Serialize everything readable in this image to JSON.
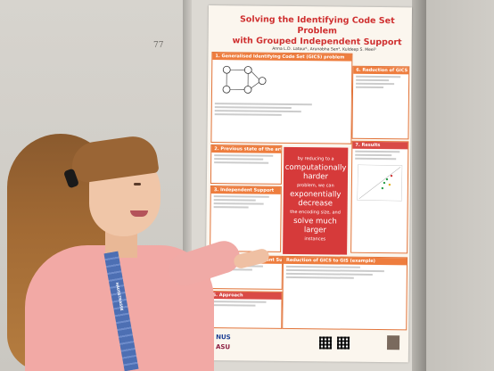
{
  "wall_scribble": "77",
  "poster": {
    "title_line1": "Solving the Identifying Code Set Problem",
    "title_line2": "with Grouped Independent Support",
    "authors": "Anna L.D. Latour¹, Arunabha Sen², Kuldeep S. Meel³",
    "sections": [
      {
        "label": "1. Generalised Identifying Code Set (GICS) problem"
      },
      {
        "label": "2. Previous state of the art"
      },
      {
        "label": "3. Independent Support"
      },
      {
        "label": "4. Grouped Independent Support"
      },
      {
        "label": "5. Approach"
      },
      {
        "label": "6. Reduction of GICS to GIS"
      },
      {
        "label": "7. Results"
      },
      {
        "label": "Reduction of GICS to GIS (example)"
      }
    ],
    "center_box": {
      "line1": "by reducing to a",
      "line2": "computationally harder",
      "line3": "problem, we can",
      "line4": "exponentially decrease",
      "line5": "the encoding size, and",
      "line6": "solve much larger",
      "line7": "instances"
    },
    "logos": {
      "nus": "NUS",
      "asu": "ASU"
    }
  },
  "lanyard_text": "HAUSSTRASSE"
}
